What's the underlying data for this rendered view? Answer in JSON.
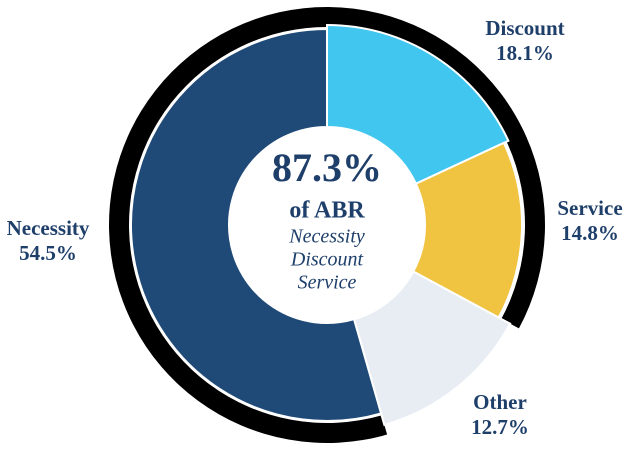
{
  "chart_data": {
    "type": "donut",
    "categories": [
      "Discount",
      "Service",
      "Other",
      "Necessity"
    ],
    "values": [
      18.1,
      14.8,
      12.7,
      54.5
    ],
    "value_labels": [
      "18.1%",
      "14.8%",
      "12.7%",
      "54.5%"
    ],
    "colors": [
      "#41c6f0",
      "#f0c340",
      "#e8edf4",
      "#1f4a77"
    ],
    "highlight": {
      "value": 87.3,
      "label": "87.3%",
      "text": "of ABR",
      "items": [
        "Necessity",
        "Discount",
        "Service"
      ],
      "color": "#000000"
    }
  }
}
